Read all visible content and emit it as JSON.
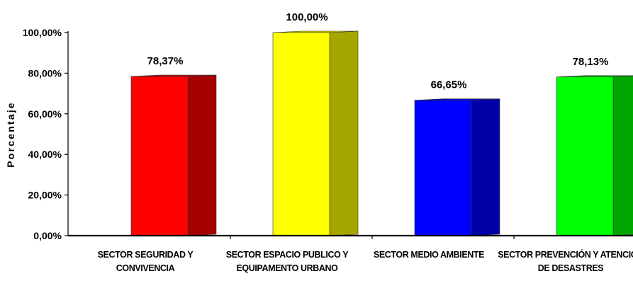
{
  "chart_data": {
    "type": "bar",
    "title": "",
    "xlabel": "",
    "ylabel": "Porcentaje",
    "ylim": [
      0,
      100
    ],
    "yticks": [
      "0,00%",
      "20,00%",
      "40,00%",
      "60,00%",
      "80,00%",
      "100,00%"
    ],
    "grid": false,
    "style": "3d",
    "categories": [
      [
        "SECTOR SEGURIDAD Y",
        "CONVIVENCIA"
      ],
      [
        "SECTOR ESPACIO PUBLICO Y",
        "EQUIPAMENTO URBANO"
      ],
      [
        "SECTOR MEDIO AMBIENTE"
      ],
      [
        "SECTOR PREVENCIÓN Y ATENCIÓN",
        "DE DESASTRES"
      ]
    ],
    "values": [
      78.37,
      100.0,
      66.65,
      78.13
    ],
    "data_labels": [
      "78,37%",
      "100,00%",
      "66,65%",
      "78,13%"
    ],
    "colors": [
      {
        "front": "#ff0000",
        "side": "#a60000",
        "top": "#cc0000"
      },
      {
        "front": "#ffff00",
        "side": "#a6a600",
        "top": "#cccc00"
      },
      {
        "front": "#0000ff",
        "side": "#0000a6",
        "top": "#0000cc"
      },
      {
        "front": "#00ff00",
        "side": "#00a600",
        "top": "#00cc00"
      }
    ]
  }
}
